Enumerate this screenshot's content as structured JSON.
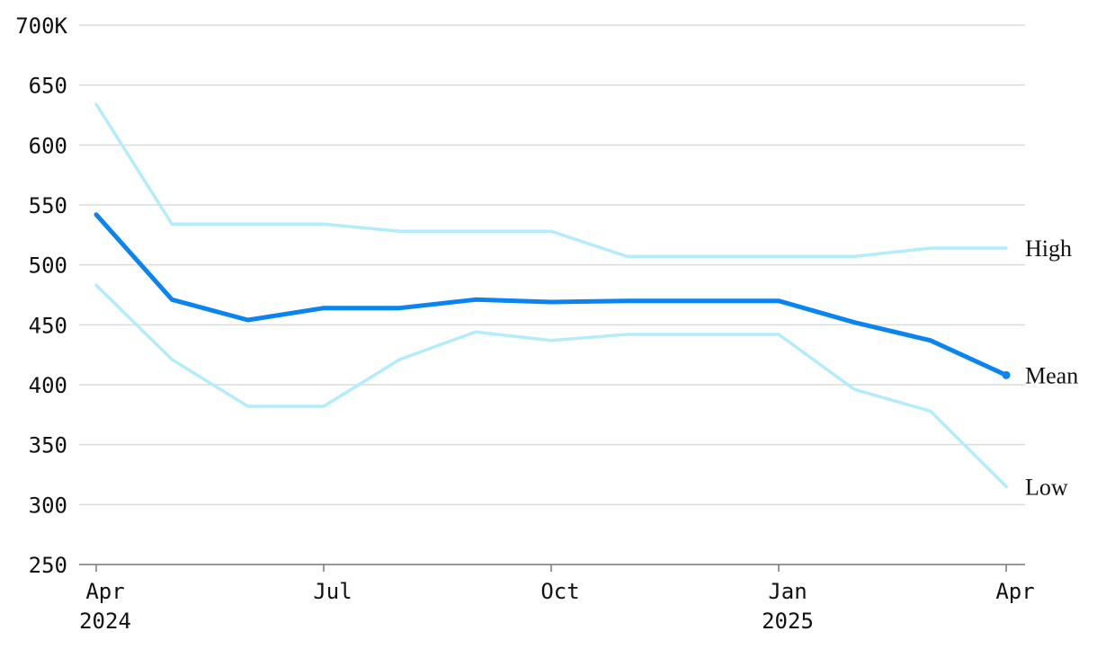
{
  "chart_data": {
    "type": "line",
    "title": "",
    "xlabel": "",
    "ylabel": "",
    "ylim": [
      250,
      700
    ],
    "y_ticks": [
      "250",
      "300",
      "350",
      "400",
      "450",
      "500",
      "550",
      "600",
      "650",
      "700K"
    ],
    "x_ticks": [
      {
        "month": "Apr",
        "year": "2024"
      },
      {
        "month": "Jul",
        "year": ""
      },
      {
        "month": "Oct",
        "year": ""
      },
      {
        "month": "Jan",
        "year": "2025"
      },
      {
        "month": "Apr",
        "year": ""
      }
    ],
    "x": [
      "2024-04",
      "2024-05",
      "2024-06",
      "2024-07",
      "2024-08",
      "2024-09",
      "2024-10",
      "2024-11",
      "2024-12",
      "2025-01",
      "2025-02",
      "2025-03",
      "2025-04"
    ],
    "grid": true,
    "series": [
      {
        "name": "High",
        "color": "#b3ecfa",
        "values": [
          634,
          534,
          534,
          534,
          528,
          528,
          528,
          507,
          507,
          507,
          507,
          514,
          514
        ]
      },
      {
        "name": "Mean",
        "color": "#0a84f0",
        "values": [
          542,
          471,
          454,
          464,
          464,
          471,
          469,
          470,
          470,
          470,
          452,
          437,
          408
        ]
      },
      {
        "name": "Low",
        "color": "#b3ecfa",
        "values": [
          483,
          421,
          382,
          382,
          421,
          444,
          437,
          442,
          442,
          442,
          396,
          378,
          315
        ]
      }
    ]
  }
}
